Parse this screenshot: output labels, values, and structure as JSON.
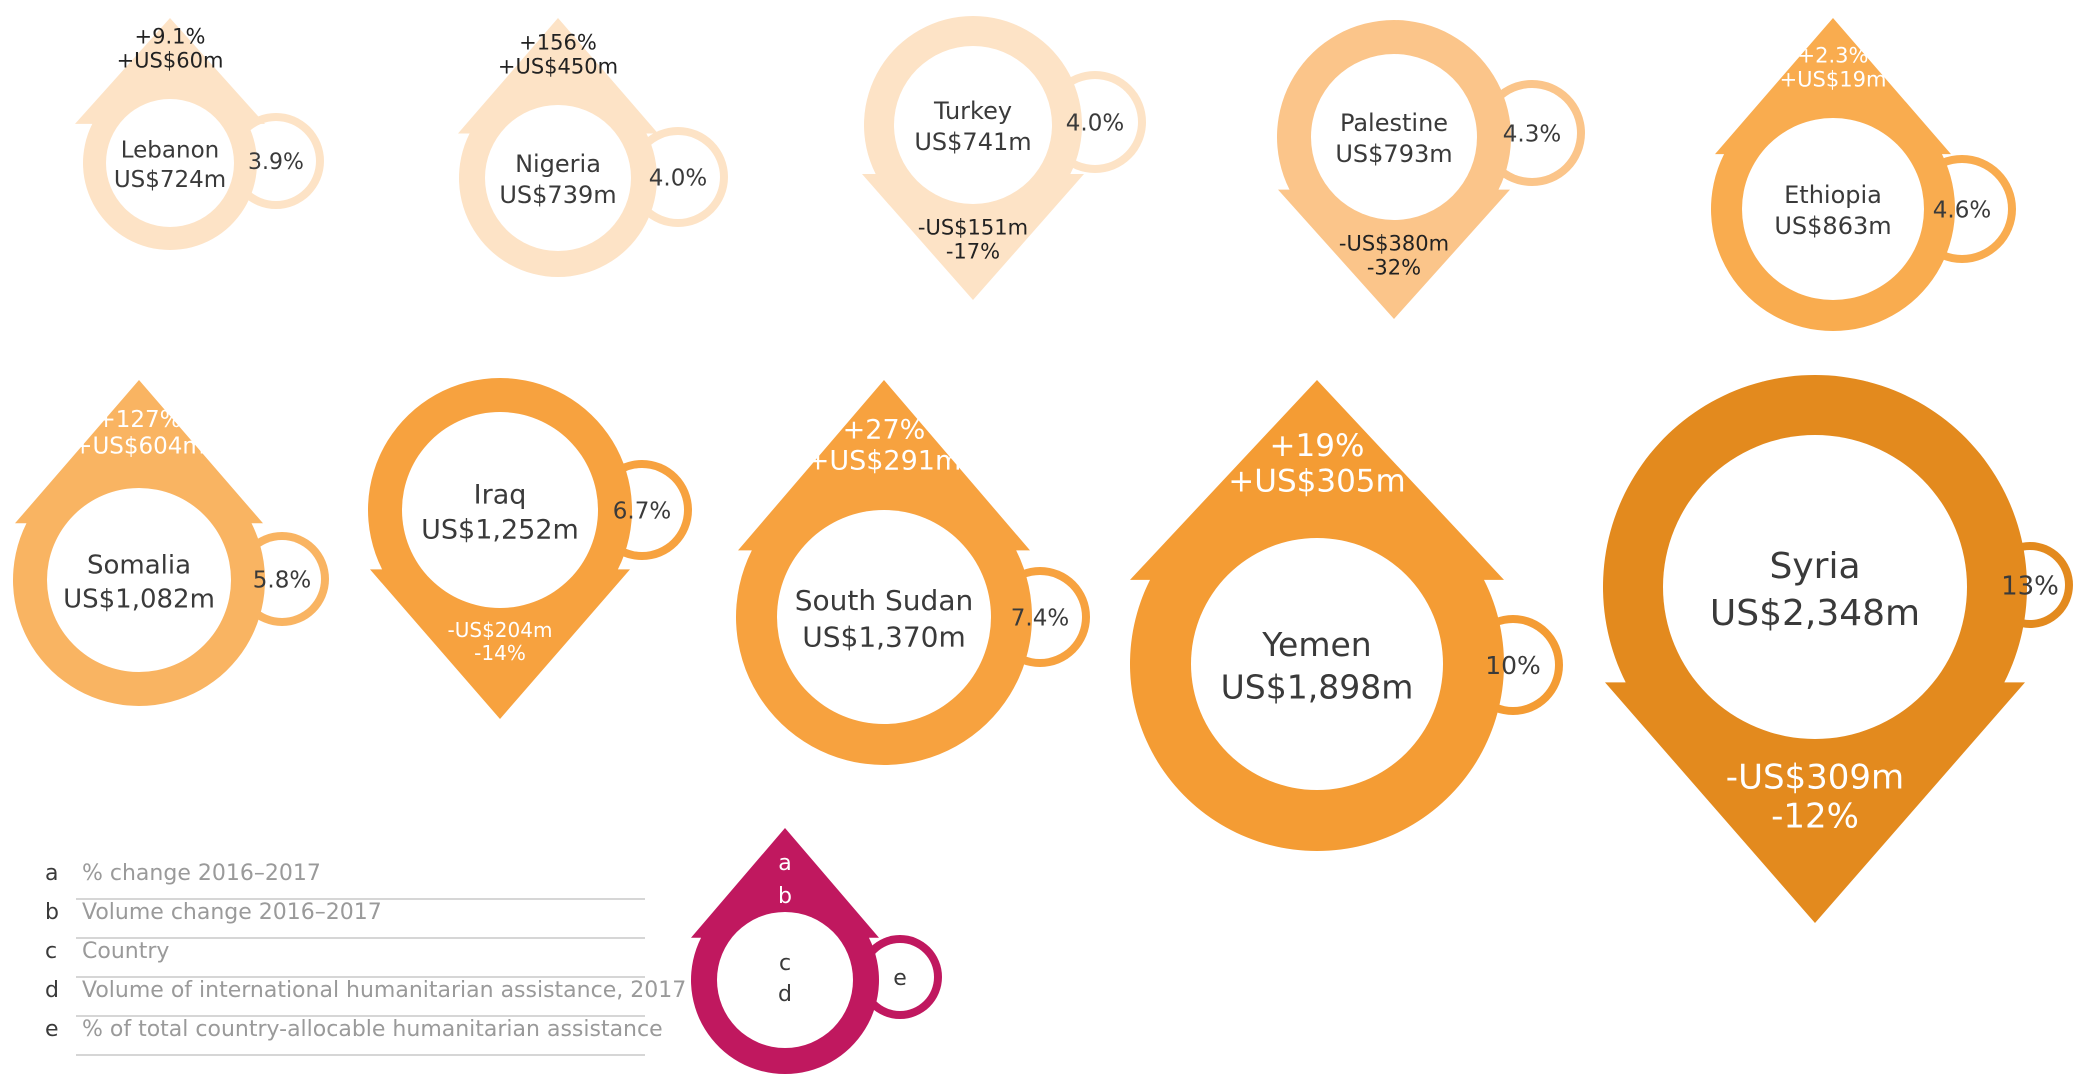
{
  "chart_data": {
    "type": "other",
    "countries": [
      {
        "country": "Lebanon",
        "volume": "US$724m",
        "volume_usd_m": 724,
        "share": "3.9%",
        "direction": "up",
        "pct_change": "+9.1%",
        "vol_change": "+US$60m",
        "color": "#fde3c6",
        "ink": "#3a3a3a",
        "change_ink": "#222222"
      },
      {
        "country": "Nigeria",
        "volume": "US$739m",
        "volume_usd_m": 739,
        "share": "4.0%",
        "direction": "up",
        "pct_change": "+156%",
        "vol_change": "+US$450m",
        "color": "#fde3c6",
        "ink": "#3a3a3a",
        "change_ink": "#222222"
      },
      {
        "country": "Turkey",
        "volume": "US$741m",
        "volume_usd_m": 741,
        "share": "4.0%",
        "direction": "down",
        "pct_change": "-17%",
        "vol_change": "-US$151m",
        "color": "#fde3c6",
        "ink": "#3a3a3a",
        "change_ink": "#222222"
      },
      {
        "country": "Palestine",
        "volume": "US$793m",
        "volume_usd_m": 793,
        "share": "4.3%",
        "direction": "down",
        "pct_change": "-32%",
        "vol_change": "-US$380m",
        "color": "#fbc58a",
        "ink": "#3a3a3a",
        "change_ink": "#222222"
      },
      {
        "country": "Ethiopia",
        "volume": "US$863m",
        "volume_usd_m": 863,
        "share": "4.6%",
        "direction": "up",
        "pct_change": "+2.3%",
        "vol_change": "+US$19m",
        "color": "#f9ac4f",
        "ink": "#3a3a3a",
        "change_ink": "#ffffff"
      },
      {
        "country": "Somalia",
        "volume": "US$1,082m",
        "volume_usd_m": 1082,
        "share": "5.8%",
        "direction": "up",
        "pct_change": "+127%",
        "vol_change": "+US$604m",
        "color": "#f9b462",
        "ink": "#3a3a3a",
        "change_ink": "#ffffff"
      },
      {
        "country": "Iraq",
        "volume": "US$1,252m",
        "volume_usd_m": 1252,
        "share": "6.7%",
        "direction": "down",
        "pct_change": "-14%",
        "vol_change": "-US$204m",
        "color": "#f7a23f",
        "ink": "#3a3a3a",
        "change_ink": "#ffffff"
      },
      {
        "country": "South Sudan",
        "volume": "US$1,370m",
        "volume_usd_m": 1370,
        "share": "7.4%",
        "direction": "up",
        "pct_change": "+27%",
        "vol_change": "+US$291m",
        "color": "#f7a23f",
        "ink": "#3a3a3a",
        "change_ink": "#ffffff"
      },
      {
        "country": "Yemen",
        "volume": "US$1,898m",
        "volume_usd_m": 1898,
        "share": "10%",
        "direction": "up",
        "pct_change": "+19%",
        "vol_change": "+US$305m",
        "color": "#f49c34",
        "ink": "#3a3a3a",
        "change_ink": "#ffffff"
      },
      {
        "country": "Syria",
        "volume": "US$2,348m",
        "volume_usd_m": 2348,
        "share": "13%",
        "direction": "down",
        "pct_change": "-12%",
        "vol_change": "-US$309m",
        "color": "#e38a1e",
        "ink": "#3a3a3a",
        "change_ink": "#ffffff"
      }
    ],
    "key_glyph": {
      "a": "a",
      "b": "b",
      "c": "c",
      "d": "d",
      "e": "e",
      "color": "#c0185f"
    },
    "legend": [
      {
        "letter": "a",
        "text": "% change 2016–2017"
      },
      {
        "letter": "b",
        "text": "Volume change 2016–2017"
      },
      {
        "letter": "c",
        "text": "Country"
      },
      {
        "letter": "d",
        "text": "Volume of international humanitarian assistance, 2017"
      },
      {
        "letter": "e",
        "text": "% of total country-allocable humanitarian assistance"
      }
    ]
  }
}
